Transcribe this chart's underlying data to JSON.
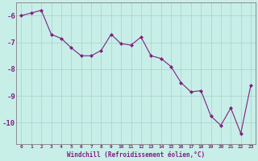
{
  "x": [
    0,
    1,
    2,
    3,
    4,
    5,
    6,
    7,
    8,
    9,
    10,
    11,
    12,
    13,
    14,
    15,
    16,
    17,
    18,
    19,
    20,
    21,
    22,
    23
  ],
  "y": [
    -6.0,
    -5.9,
    -5.8,
    -6.7,
    -6.85,
    -7.2,
    -7.5,
    -7.5,
    -7.3,
    -6.7,
    -7.05,
    -7.1,
    -6.8,
    -7.5,
    -7.6,
    -7.9,
    -8.5,
    -8.85,
    -8.8,
    -9.75,
    -10.1,
    -9.45,
    -10.4,
    -8.6
  ],
  "line_color": "#802080",
  "marker": "D",
  "marker_size": 2,
  "bg_color": "#C8EEE8",
  "grid_color": "#A8D8D0",
  "xlabel": "Windchill (Refroidissement éolien,°C)",
  "xlabel_color": "#802080",
  "tick_color": "#802080",
  "ylim": [
    -10.8,
    -5.5
  ],
  "yticks": [
    -10,
    -9,
    -8,
    -7,
    -6
  ],
  "xticks": [
    0,
    1,
    2,
    3,
    4,
    5,
    6,
    7,
    8,
    9,
    10,
    11,
    12,
    13,
    14,
    15,
    16,
    17,
    18,
    19,
    20,
    21,
    22,
    23
  ],
  "spine_color": "#808080"
}
